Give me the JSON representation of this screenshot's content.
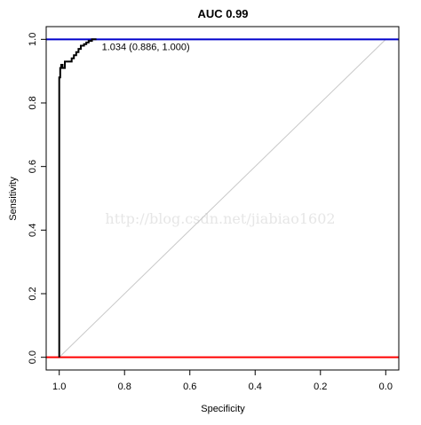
{
  "chart_data": {
    "type": "line",
    "title": "AUC 0.99",
    "xlabel": "Specificity",
    "ylabel": "Sensitivity",
    "xlim": [
      1.04,
      -0.04
    ],
    "ylim": [
      -0.04,
      1.04
    ],
    "x_reversed": true,
    "x_ticks": [
      1.0,
      0.8,
      0.6,
      0.4,
      0.2,
      0.0
    ],
    "x_tick_labels": [
      "1.0",
      "0.8",
      "0.6",
      "0.4",
      "0.2",
      "0.0"
    ],
    "y_ticks": [
      0.0,
      0.2,
      0.4,
      0.6,
      0.8,
      1.0
    ],
    "y_tick_labels": [
      "0.0",
      "0.2",
      "0.4",
      "0.6",
      "0.8",
      "1.0"
    ],
    "grid": false,
    "series": [
      {
        "color": "#000000",
        "x": [
          1.0,
          1.0,
          1.0,
          0.997,
          0.997,
          0.994,
          0.994,
          0.99,
          0.99,
          0.983,
          0.983,
          0.972,
          0.972,
          0.962,
          0.962,
          0.955,
          0.955,
          0.948,
          0.948,
          0.941,
          0.941,
          0.934,
          0.934,
          0.924,
          0.924,
          0.917,
          0.917,
          0.91,
          0.91,
          0.9,
          0.9,
          0.893,
          0.886
        ],
        "y": [
          0.0,
          0.82,
          0.88,
          0.88,
          0.91,
          0.91,
          0.92,
          0.92,
          0.91,
          0.91,
          0.93,
          0.93,
          0.93,
          0.93,
          0.94,
          0.94,
          0.95,
          0.95,
          0.96,
          0.96,
          0.97,
          0.97,
          0.98,
          0.98,
          0.985,
          0.985,
          0.99,
          0.99,
          0.995,
          0.995,
          1.0,
          1.0,
          1.0
        ]
      }
    ],
    "reference_lines": [
      {
        "type": "diagonal",
        "from": [
          1.0,
          0.0
        ],
        "to": [
          0.0,
          1.0
        ],
        "color": "#c8c8c8"
      },
      {
        "type": "hline",
        "y": 1.0,
        "color": "#0000cc"
      },
      {
        "type": "hline",
        "y": 0.0,
        "color": "#ff0000"
      }
    ],
    "annotations": [
      {
        "text": "1.034 (0.886, 1.000)",
        "x": 0.886,
        "y": 1.0
      }
    ],
    "watermark": "http://blog.csdn.net/jiabiao1602"
  }
}
